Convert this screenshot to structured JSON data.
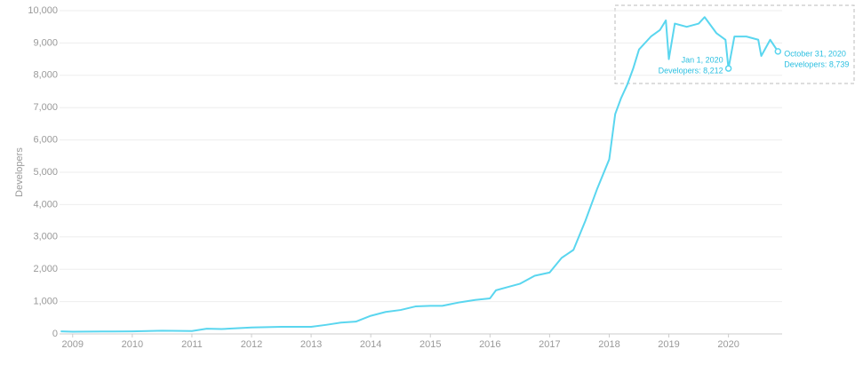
{
  "chart_data": {
    "type": "line",
    "y_label": "Developers",
    "color": "#5ad6ef",
    "grid": true,
    "xlim": [
      2008.78,
      2020.9
    ],
    "xticks": [
      2009,
      2010,
      2011,
      2012,
      2013,
      2014,
      2015,
      2016,
      2017,
      2018,
      2019,
      2020
    ],
    "ylim": [
      0,
      10000
    ],
    "yticks": [
      0,
      {
        "value": 1000,
        "label": "1,000"
      },
      {
        "value": 2000,
        "label": "2,000"
      },
      {
        "value": 3000,
        "label": "3,000"
      },
      {
        "value": 4000,
        "label": "4,000"
      },
      {
        "value": 5000,
        "label": "5,000"
      },
      {
        "value": 6000,
        "label": "6,000"
      },
      {
        "value": 7000,
        "label": "7,000"
      },
      {
        "value": 8000,
        "label": "8,000"
      },
      {
        "value": 9000,
        "label": "9,000"
      },
      {
        "value": 10000,
        "label": "10,000"
      }
    ],
    "x": [
      2008.8,
      2009.0,
      2009.5,
      2010.0,
      2010.5,
      2011.0,
      2011.25,
      2011.5,
      2012.0,
      2012.5,
      2013.0,
      2013.25,
      2013.5,
      2013.75,
      2014.0,
      2014.25,
      2014.5,
      2014.75,
      2015.0,
      2015.2,
      2015.5,
      2015.75,
      2016.0,
      2016.1,
      2016.3,
      2016.5,
      2016.75,
      2017.0,
      2017.2,
      2017.4,
      2017.6,
      2017.8,
      2018.0,
      2018.1,
      2018.2,
      2018.3,
      2018.4,
      2018.5,
      2018.7,
      2018.85,
      2018.95,
      2019.0,
      2019.1,
      2019.3,
      2019.5,
      2019.6,
      2019.8,
      2019.95,
      2020.0,
      2020.1,
      2020.3,
      2020.5,
      2020.55,
      2020.7,
      2020.83
    ],
    "series": [
      {
        "name": "Developers",
        "color": "#5ad6ef",
        "values": [
          80,
          70,
          75,
          80,
          100,
          90,
          160,
          150,
          200,
          220,
          220,
          280,
          350,
          380,
          560,
          680,
          740,
          850,
          870,
          870,
          980,
          1050,
          1100,
          1350,
          1450,
          1550,
          1800,
          1900,
          2350,
          2600,
          3500,
          4500,
          5400,
          6800,
          7300,
          7700,
          8200,
          8800,
          9200,
          9400,
          9700,
          8500,
          9600,
          9500,
          9600,
          9800,
          9300,
          9100,
          8212,
          9200,
          9200,
          9100,
          8600,
          9100,
          8739
        ]
      }
    ],
    "annotations": [
      {
        "x": 2020.0,
        "y": 8212,
        "lines": [
          "Jan 1, 2020",
          "Developers: 8,212"
        ]
      },
      {
        "x": 2020.83,
        "y": 8739,
        "lines": [
          "October 31, 2020",
          "Developers: 8,739"
        ]
      }
    ]
  }
}
